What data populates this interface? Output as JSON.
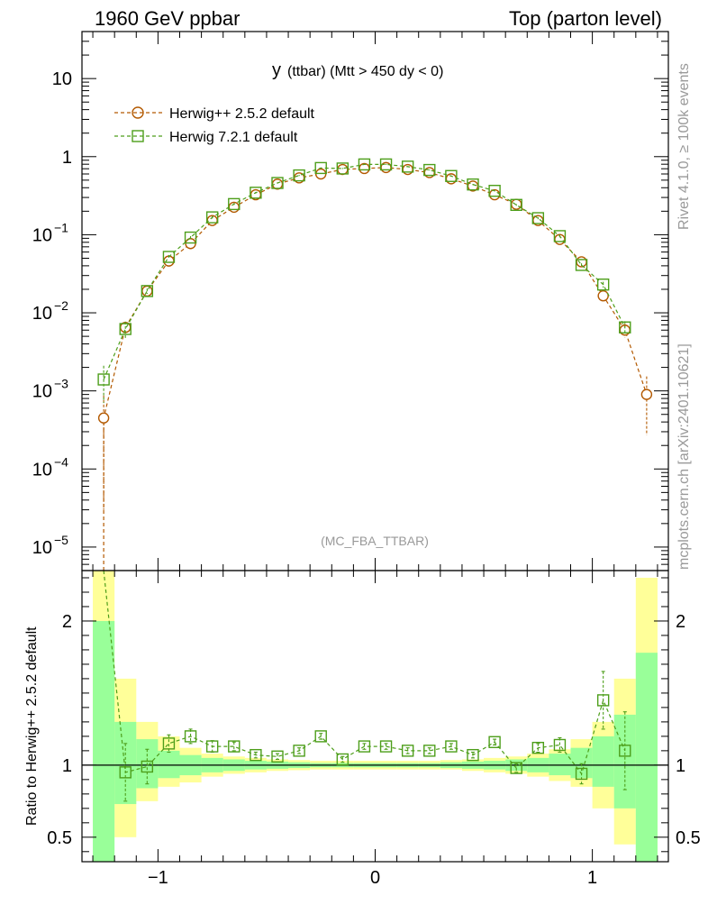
{
  "header": {
    "left": "1960 GeV ppbar",
    "right": "Top (parton level)"
  },
  "plot_title": {
    "main": "y",
    "sub": "(ttbar) (Mtt > 450 dy < 0)"
  },
  "analysis_tag": "(MC_FBA_TTBAR)",
  "side_notes": {
    "rivet": "Rivet 4.1.0, ≥ 100k events",
    "mcplots": "mcplots.cern.ch [arXiv:2401.10621]"
  },
  "colors": {
    "herwig252": "#b35900",
    "herwig721": "#4d9e1a",
    "band_yellow": "#ffff99",
    "band_green": "#99ff99"
  },
  "chart_data": {
    "type": "line",
    "x_label": "",
    "xlim": [
      -1.35,
      1.35
    ],
    "x_tick_labels": [
      "−1",
      "0",
      "1"
    ],
    "upper": {
      "yscale": "log",
      "ylim": [
        5e-06,
        40
      ],
      "y_tick_labels": [
        {
          "v": 10,
          "t": "10"
        },
        {
          "v": 1,
          "t": "1"
        },
        {
          "v": 0.1,
          "t": "10",
          "e": "−1"
        },
        {
          "v": 0.01,
          "t": "10",
          "e": "−2"
        },
        {
          "v": 0.001,
          "t": "10",
          "e": "−3"
        },
        {
          "v": 0.0001,
          "t": "10",
          "e": "−4"
        },
        {
          "v": 1e-05,
          "t": "10",
          "e": "−5"
        }
      ]
    },
    "lower": {
      "ylabel": "Ratio to Herwig++ 2.5.2 default",
      "ylim": [
        0.33,
        2.35
      ],
      "y_tick_labels": [
        {
          "v": 2,
          "t": "2"
        },
        {
          "v": 1,
          "t": "1"
        },
        {
          "v": 0.5,
          "t": "0.5"
        }
      ]
    },
    "bins": [
      -1.3,
      -1.2,
      -1.1,
      -1.0,
      -0.9,
      -0.8,
      -0.7,
      -0.6,
      -0.5,
      -0.4,
      -0.3,
      -0.2,
      -0.1,
      0.0,
      0.1,
      0.2,
      0.3,
      0.4,
      0.5,
      0.6,
      0.7,
      0.8,
      0.9,
      1.0,
      1.1,
      1.2,
      1.3
    ],
    "series": [
      {
        "name": "Herwig++ 2.5.2 default",
        "marker": "circle",
        "x": [
          -1.25,
          -1.15,
          -1.05,
          -0.95,
          -0.85,
          -0.75,
          -0.65,
          -0.55,
          -0.45,
          -0.35,
          -0.25,
          -0.15,
          -0.05,
          0.05,
          0.15,
          0.25,
          0.35,
          0.45,
          0.55,
          0.65,
          0.75,
          0.85,
          0.95,
          1.05,
          1.15,
          1.25
        ],
        "y": [
          0.00045,
          0.0065,
          0.019,
          0.046,
          0.077,
          0.152,
          0.225,
          0.325,
          0.445,
          0.535,
          0.6,
          0.685,
          0.705,
          0.725,
          0.685,
          0.625,
          0.52,
          0.42,
          0.325,
          0.245,
          0.152,
          0.087,
          0.045,
          0.0165,
          0.006,
          0.0009
        ],
        "err": [
          0.00042,
          0.0012,
          0.001,
          0.002,
          0.003,
          0.004,
          0.005,
          0.006,
          0.007,
          0.008,
          0.008,
          0.009,
          0.009,
          0.009,
          0.009,
          0.008,
          0.008,
          0.007,
          0.006,
          0.005,
          0.004,
          0.003,
          0.002,
          0.001,
          0.0012,
          0.00063
        ]
      },
      {
        "name": "Herwig 7.2.1 default",
        "marker": "square",
        "x": [
          -1.25,
          -1.15,
          -1.05,
          -0.95,
          -0.85,
          -0.75,
          -0.65,
          -0.55,
          -0.45,
          -0.35,
          -0.25,
          -0.15,
          -0.05,
          0.05,
          0.15,
          0.25,
          0.35,
          0.45,
          0.55,
          0.65,
          0.75,
          0.85,
          0.95,
          1.05,
          1.15,
          1.25
        ],
        "y": [
          0.0014,
          0.0062,
          0.019,
          0.052,
          0.092,
          0.167,
          0.247,
          0.345,
          0.46,
          0.575,
          0.715,
          0.705,
          0.795,
          0.795,
          0.745,
          0.675,
          0.565,
          0.44,
          0.365,
          0.241,
          0.163,
          0.096,
          0.041,
          0.023,
          0.0065,
          null
        ],
        "err": [
          0.0007,
          0.0015,
          0.0015,
          0.003,
          0.004,
          0.006,
          0.007,
          0.008,
          0.009,
          0.01,
          0.011,
          0.011,
          0.012,
          0.012,
          0.011,
          0.01,
          0.009,
          0.008,
          0.007,
          0.006,
          0.005,
          0.004,
          0.002,
          0.002,
          0.0013,
          null
        ]
      }
    ],
    "ratio": {
      "x": [
        -1.15,
        -1.05,
        -0.95,
        -0.85,
        -0.75,
        -0.65,
        -0.55,
        -0.45,
        -0.35,
        -0.25,
        -0.15,
        -0.05,
        0.05,
        0.15,
        0.25,
        0.35,
        0.45,
        0.55,
        0.65,
        0.75,
        0.85,
        0.95,
        1.05,
        1.15
      ],
      "y": [
        0.95,
        0.99,
        1.15,
        1.2,
        1.13,
        1.13,
        1.07,
        1.06,
        1.1,
        1.2,
        1.04,
        1.13,
        1.13,
        1.1,
        1.1,
        1.13,
        1.07,
        1.16,
        0.98,
        1.12,
        1.14,
        0.94,
        1.45,
        1.1
      ],
      "err": [
        0.2,
        0.12,
        0.06,
        0.05,
        0.04,
        0.03,
        0.02,
        0.02,
        0.02,
        0.02,
        0.02,
        0.02,
        0.02,
        0.02,
        0.02,
        0.02,
        0.02,
        0.02,
        0.03,
        0.03,
        0.05,
        0.07,
        0.2,
        0.27
      ],
      "ext_left": {
        "x": -1.25,
        "y": 2.35
      }
    },
    "bands": {
      "yellow": [
        [
          0.6,
          2.35
        ],
        [
          0.5,
          1.6
        ],
        [
          0.75,
          1.3
        ],
        [
          0.85,
          1.2
        ],
        [
          0.88,
          1.12
        ],
        [
          0.92,
          1.08
        ],
        [
          0.94,
          1.06
        ],
        [
          0.95,
          1.05
        ],
        [
          0.96,
          1.04
        ],
        [
          0.965,
          1.035
        ],
        [
          0.97,
          1.03
        ],
        [
          0.97,
          1.03
        ],
        [
          0.97,
          1.03
        ],
        [
          0.97,
          1.03
        ],
        [
          0.97,
          1.03
        ],
        [
          0.97,
          1.03
        ],
        [
          0.97,
          1.035
        ],
        [
          0.96,
          1.04
        ],
        [
          0.95,
          1.05
        ],
        [
          0.94,
          1.06
        ],
        [
          0.92,
          1.08
        ],
        [
          0.89,
          1.11
        ],
        [
          0.85,
          1.18
        ],
        [
          0.7,
          1.3
        ],
        [
          0.45,
          1.6
        ],
        [
          0.33,
          2.3
        ]
      ],
      "green": [
        [
          0.33,
          2.0
        ],
        [
          0.73,
          1.3
        ],
        [
          0.84,
          1.18
        ],
        [
          0.91,
          1.1
        ],
        [
          0.93,
          1.07
        ],
        [
          0.95,
          1.05
        ],
        [
          0.96,
          1.04
        ],
        [
          0.97,
          1.03
        ],
        [
          0.975,
          1.025
        ],
        [
          0.98,
          1.02
        ],
        [
          0.985,
          1.015
        ],
        [
          0.985,
          1.015
        ],
        [
          0.985,
          1.015
        ],
        [
          0.985,
          1.015
        ],
        [
          0.985,
          1.015
        ],
        [
          0.985,
          1.015
        ],
        [
          0.98,
          1.02
        ],
        [
          0.975,
          1.025
        ],
        [
          0.97,
          1.03
        ],
        [
          0.96,
          1.04
        ],
        [
          0.95,
          1.05
        ],
        [
          0.93,
          1.08
        ],
        [
          0.91,
          1.12
        ],
        [
          0.85,
          1.2
        ],
        [
          0.7,
          1.35
        ],
        [
          0.33,
          1.78
        ]
      ]
    }
  }
}
